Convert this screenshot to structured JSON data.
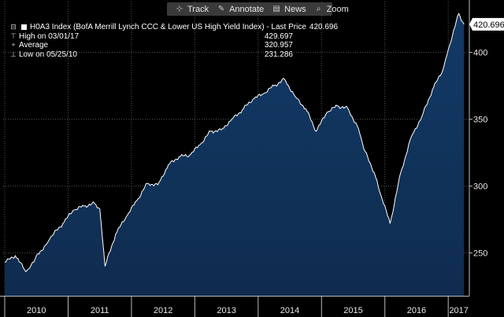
{
  "toolbar": {
    "items": [
      {
        "label": "Track",
        "icon": "crosshair-icon",
        "glyph": "⊹"
      },
      {
        "label": "Annotate",
        "icon": "pencil-icon",
        "glyph": "✎"
      },
      {
        "label": "News",
        "icon": "news-icon",
        "glyph": "▤"
      },
      {
        "label": "Zoom",
        "icon": "magnifier-icon",
        "glyph": "⌕"
      }
    ]
  },
  "legend": {
    "title": "H0A3 Index (BofA Merrill Lynch CCC & Lower US High Yield Index) - Last Price",
    "last_value": "420.696",
    "high_label": "High on 03/01/17",
    "high_value": "429.697",
    "average_label": "Average",
    "average_value": "320.957",
    "low_label": "Low on 05/25/10",
    "low_value": "231.286"
  },
  "colors": {
    "background": "#000000",
    "area_fill": "#0f2c4f",
    "line": "#ffffff",
    "grid": "#555555",
    "axis_text": "#e6e6e6"
  },
  "chart_data": {
    "type": "area",
    "series": [
      {
        "x": [
          "2010-01",
          "2010-03",
          "2010-05",
          "2010-06",
          "2010-07",
          "2010-09",
          "2010-10",
          "2010-12",
          "2011-02",
          "2011-04",
          "2011-06",
          "2011-07",
          "2011-08",
          "2011-10",
          "2011-12",
          "2012-02",
          "2012-04",
          "2012-06",
          "2012-08",
          "2012-10",
          "2012-12",
          "2013-02",
          "2013-04",
          "2013-06",
          "2013-08",
          "2013-10",
          "2013-12",
          "2014-02",
          "2014-04",
          "2014-06",
          "2014-08",
          "2014-10",
          "2014-12",
          "2015-02",
          "2015-04",
          "2015-06",
          "2015-08",
          "2015-09",
          "2015-11",
          "2015-12",
          "2016-02",
          "2016-04",
          "2016-06",
          "2016-08",
          "2016-10",
          "2016-12",
          "2017-01",
          "2017-03",
          "2017-04"
        ],
        "values": [
          243,
          248,
          236,
          241,
          248,
          257,
          263,
          272,
          282,
          285,
          287,
          283,
          240,
          264,
          277,
          289,
          302,
          301,
          316,
          322,
          323,
          331,
          341,
          342,
          350,
          357,
          365,
          369,
          375,
          380,
          367,
          358,
          341,
          355,
          360,
          358,
          343,
          328,
          310,
          296,
          272,
          310,
          337,
          352,
          372,
          387,
          402,
          429,
          421
        ]
      }
    ],
    "y_ticks": [
      250,
      300,
      350,
      400
    ],
    "ylim": [
      218,
      438
    ],
    "x_ticks": [
      "2010",
      "2011",
      "2012",
      "2013",
      "2014",
      "2015",
      "2016",
      "2017"
    ],
    "last_price_label": "420.696",
    "grid": true
  }
}
